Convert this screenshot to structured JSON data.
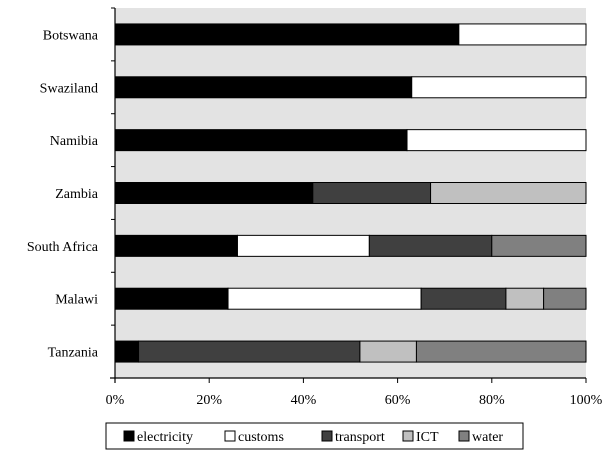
{
  "chart_data": {
    "type": "bar",
    "orientation": "horizontal",
    "stacked": true,
    "normalized_percent": true,
    "categories": [
      "Botswana",
      "Swaziland",
      "Namibia",
      "Zambia",
      "South Africa",
      "Malawi",
      "Tanzania"
    ],
    "series": [
      {
        "name": "electricity",
        "values": [
          73,
          63,
          62,
          42,
          26,
          24,
          5
        ]
      },
      {
        "name": "customs",
        "values": [
          27,
          37,
          38,
          0,
          28,
          41,
          0
        ]
      },
      {
        "name": "transport",
        "values": [
          0,
          0,
          0,
          25,
          26,
          18,
          47
        ]
      },
      {
        "name": "ICT",
        "values": [
          0,
          0,
          0,
          33,
          0,
          8,
          12
        ]
      },
      {
        "name": "water",
        "values": [
          0,
          0,
          0,
          0,
          20,
          9,
          36
        ]
      }
    ],
    "xticks": [
      "0%",
      "20%",
      "40%",
      "60%",
      "80%",
      "100%"
    ],
    "xlim": [
      0,
      100
    ],
    "title": "",
    "xlabel": "",
    "ylabel": "",
    "legend_position": "bottom",
    "grid": false,
    "colors": {
      "plot_background": "#e3e3e3",
      "electricity": "#000000",
      "customs": "#ffffff",
      "transport": "#404040",
      "ICT": "#c0c0c0",
      "water": "#808080"
    }
  }
}
